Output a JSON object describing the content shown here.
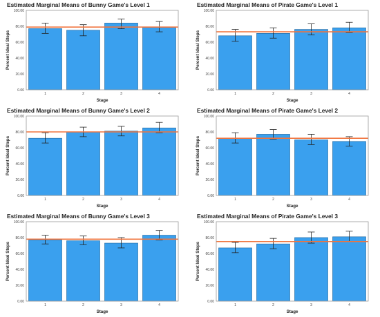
{
  "chart_data": [
    {
      "type": "bar",
      "title": "Estimated Marginal Means of Bunny Game's Level 1",
      "xlabel": "Stage",
      "ylabel": "Percent Ideal Steps",
      "categories": [
        "1",
        "2",
        "3",
        "4"
      ],
      "values": [
        77,
        75,
        84,
        79
      ],
      "error_low": [
        71,
        68,
        77,
        73
      ],
      "error_high": [
        84,
        82,
        89,
        86
      ],
      "reference_line": 79,
      "ylim": [
        0,
        100
      ],
      "yticks": [
        "0.00",
        "20.00",
        "40.00",
        "60.00",
        "80.00",
        "100.00"
      ]
    },
    {
      "type": "bar",
      "title": "Estimated Marginal Means of Pirate Game's Level 1",
      "xlabel": "Stage",
      "ylabel": "Percent Ideal Steps",
      "categories": [
        "1",
        "2",
        "3",
        "4"
      ],
      "values": [
        68,
        71,
        76,
        78
      ],
      "error_low": [
        61,
        65,
        69,
        72
      ],
      "error_high": [
        76,
        78,
        83,
        85
      ],
      "reference_line": 73,
      "ylim": [
        0,
        100
      ],
      "yticks": [
        "0.00",
        "20.00",
        "40.00",
        "60.00",
        "80.00",
        "100.00"
      ]
    },
    {
      "type": "bar",
      "title": "Estimated Marginal Means of Bunny Game's Level 2",
      "xlabel": "Stage",
      "ylabel": "Percent Ideal Steps",
      "categories": [
        "1",
        "2",
        "3",
        "4"
      ],
      "values": [
        72,
        80,
        81,
        85
      ],
      "error_low": [
        66,
        74,
        75,
        79
      ],
      "error_high": [
        79,
        86,
        87,
        92
      ],
      "reference_line": 80,
      "ylim": [
        0,
        100
      ],
      "yticks": [
        "0.00",
        "20.00",
        "40.00",
        "60.00",
        "80.00",
        "100.00"
      ]
    },
    {
      "type": "bar",
      "title": "Estimated Marginal Means of Pirate Game's Level 2",
      "xlabel": "Stage",
      "ylabel": "Percent Ideal Steps",
      "categories": [
        "1",
        "2",
        "3",
        "4"
      ],
      "values": [
        72,
        77,
        70,
        68
      ],
      "error_low": [
        66,
        71,
        64,
        62
      ],
      "error_high": [
        79,
        83,
        77,
        74
      ],
      "reference_line": 72,
      "ylim": [
        0,
        100
      ],
      "yticks": [
        "0.00",
        "20.00",
        "40.00",
        "60.00",
        "80.00",
        "100.00"
      ]
    },
    {
      "type": "bar",
      "title": "Estimated Marginal Means of Bunny Game's Level 3",
      "xlabel": "Stage",
      "ylabel": "Percent Ideal Steps",
      "categories": [
        "1",
        "2",
        "3",
        "4"
      ],
      "values": [
        77,
        76,
        73,
        83
      ],
      "error_low": [
        72,
        71,
        67,
        77
      ],
      "error_high": [
        83,
        82,
        80,
        89
      ],
      "reference_line": 78,
      "ylim": [
        0,
        100
      ],
      "yticks": [
        "0.00",
        "20.00",
        "40.00",
        "60.00",
        "80.00",
        "100.00"
      ]
    },
    {
      "type": "bar",
      "title": "Estimated Marginal Means of Pirate Game's Level 3",
      "xlabel": "Stage",
      "ylabel": "Percent Ideal Steps",
      "categories": [
        "1",
        "2",
        "3",
        "4"
      ],
      "values": [
        67,
        72,
        80,
        81
      ],
      "error_low": [
        61,
        66,
        73,
        75
      ],
      "error_high": [
        74,
        79,
        87,
        88
      ],
      "reference_line": 75,
      "ylim": [
        0,
        100
      ],
      "yticks": [
        "0.00",
        "20.00",
        "40.00",
        "60.00",
        "80.00",
        "100.00"
      ]
    }
  ],
  "colors": {
    "bar_fill": "#3aa0ee",
    "bar_edge": "#2a6fa6",
    "reference_line": "#f0743d",
    "error_bar": "#222222"
  }
}
